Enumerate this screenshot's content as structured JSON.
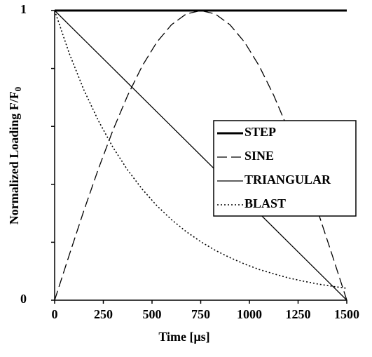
{
  "chart_data": {
    "type": "line",
    "xlabel": "Time [μs]",
    "ylabel": "Normalized Loading F/F",
    "ylabel_subscript": "0",
    "x": [
      0,
      75,
      150,
      225,
      300,
      375,
      450,
      525,
      600,
      675,
      750,
      825,
      900,
      975,
      1050,
      1125,
      1200,
      1275,
      1350,
      1425,
      1500
    ],
    "xlim": [
      0,
      1500
    ],
    "xticks": [
      0,
      250,
      500,
      750,
      1000,
      1250,
      1500
    ],
    "ylim": [
      0,
      1
    ],
    "yticks": [
      0,
      1
    ],
    "yminorticks": [
      0.2,
      0.4,
      0.6,
      0.8
    ],
    "legend": "right",
    "series": [
      {
        "name": "STEP",
        "color": "#000000",
        "dash": "solid",
        "width": 3,
        "values": [
          1,
          1,
          1,
          1,
          1,
          1,
          1,
          1,
          1,
          1,
          1,
          1,
          1,
          1,
          1,
          1,
          1,
          1,
          1,
          1,
          1
        ]
      },
      {
        "name": "SINE",
        "color": "#000000",
        "dash": "dashed",
        "width": 1.3,
        "values": [
          0,
          0.156,
          0.309,
          0.454,
          0.588,
          0.707,
          0.809,
          0.891,
          0.951,
          0.988,
          1,
          0.988,
          0.951,
          0.891,
          0.809,
          0.707,
          0.588,
          0.454,
          0.309,
          0.156,
          0
        ]
      },
      {
        "name": "TRIANGULAR",
        "color": "#000000",
        "dash": "solid",
        "width": 1.3,
        "values": [
          1,
          0.95,
          0.9,
          0.85,
          0.8,
          0.75,
          0.7,
          0.65,
          0.6,
          0.55,
          0.5,
          0.45,
          0.4,
          0.35,
          0.3,
          0.25,
          0.2,
          0.15,
          0.1,
          0.05,
          0
        ]
      },
      {
        "name": "BLAST",
        "color": "#000000",
        "dash": "dotted",
        "width": 1.6,
        "values": [
          1,
          0.852,
          0.726,
          0.619,
          0.527,
          0.449,
          0.383,
          0.326,
          0.278,
          0.237,
          0.202,
          0.172,
          0.147,
          0.125,
          0.106,
          0.091,
          0.077,
          0.066,
          0.056,
          0.048,
          0.041
        ]
      }
    ]
  }
}
